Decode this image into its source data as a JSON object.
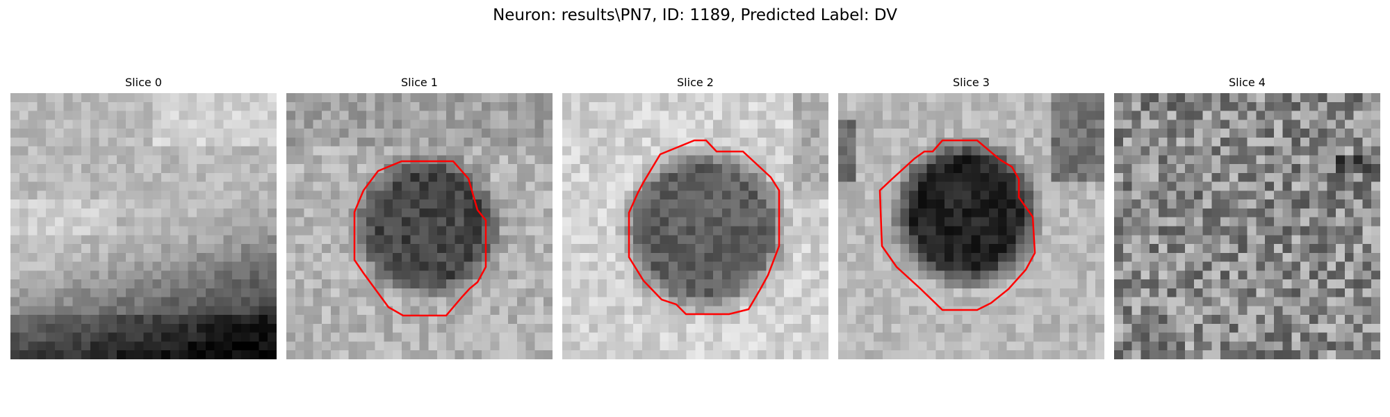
{
  "figure": {
    "suptitle": "Neuron: results\\PN7, ID: 1189, Predicted Label: DV",
    "colormap": "gray",
    "contour_color": "#ff0000"
  },
  "slices": [
    {
      "title": "Slice 0",
      "has_contour": false
    },
    {
      "title": "Slice 1",
      "has_contour": true
    },
    {
      "title": "Slice 2",
      "has_contour": true
    },
    {
      "title": "Slice 3",
      "has_contour": true
    },
    {
      "title": "Slice 4",
      "has_contour": false
    }
  ]
}
